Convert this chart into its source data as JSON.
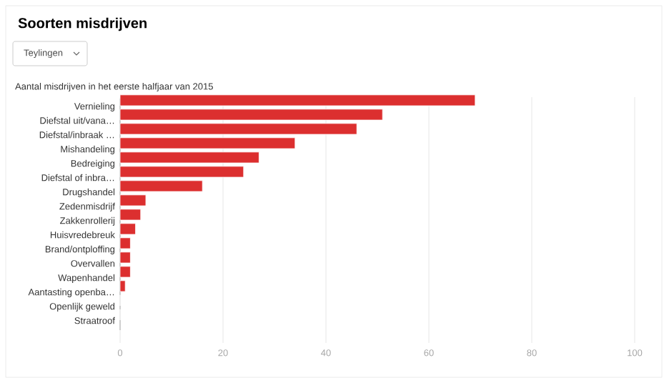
{
  "chart_data": {
    "type": "bar",
    "orientation": "horizontal",
    "title": "Soorten misdrijven",
    "subtitle": "Aantal misdrijven in het eerste halfjaar van 2015",
    "annotations": [
      "Teylingen"
    ],
    "categories": [
      "Vernieling",
      "Diefstal uit/vana…",
      "Diefstal/inbraak …",
      "Mishandeling",
      "Bedreiging",
      "Diefstal of inbra…",
      "Drugshandel",
      "Zedenmisdrijf",
      "Zakkenrollerij",
      "Huisvredebreuk",
      "Brand/ontploffing",
      "Overvallen",
      "Wapenhandel",
      "Aantasting openba…",
      "Openlijk geweld",
      "Straatroof"
    ],
    "values": [
      69,
      51,
      46,
      34,
      27,
      24,
      16,
      5,
      4,
      3,
      2,
      2,
      2,
      1,
      0,
      0
    ],
    "color": "#dc2f2f",
    "xlim": [
      0,
      100
    ],
    "xticks": [
      0,
      20,
      40,
      60,
      80,
      100
    ],
    "grid": "x"
  }
}
